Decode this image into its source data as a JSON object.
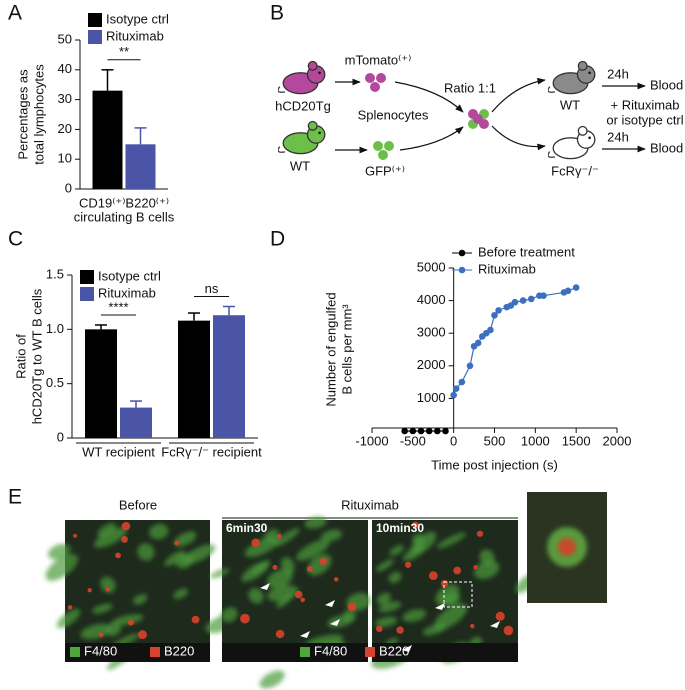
{
  "panel_labels": [
    "A",
    "B",
    "C",
    "D",
    "E"
  ],
  "chart_data": [
    {
      "type": "bar",
      "y_label": [
        "Percentages as",
        "total lymphocytes"
      ],
      "categories": [
        "CD19⁽⁺⁾B220⁽⁺⁾"
      ],
      "x_label": "circulating B cells",
      "series": [
        {
          "name": "Isotype ctrl",
          "color": "#000000",
          "values": [
            33
          ],
          "errors": [
            7
          ]
        },
        {
          "name": "Rituximab",
          "color": "#4a55a8",
          "values": [
            15
          ],
          "errors": [
            5.5
          ]
        }
      ],
      "significance": [
        "**"
      ],
      "ylim": [
        0,
        50
      ],
      "yticks": [
        0,
        10,
        20,
        30,
        40,
        50
      ]
    },
    {
      "type": "bar",
      "y_label": [
        "Ratio of",
        "hCD20Tg to WT B cells"
      ],
      "categories": [
        "WT recipient",
        "FcRγ⁻/⁻ recipient"
      ],
      "series": [
        {
          "name": "Isotype ctrl",
          "color": "#000000",
          "values": [
            1.0,
            1.08
          ],
          "errors": [
            0.04,
            0.07
          ]
        },
        {
          "name": "Rituximab",
          "color": "#4a55a8",
          "values": [
            0.28,
            1.13
          ],
          "errors": [
            0.06,
            0.08
          ]
        }
      ],
      "significance": [
        "****",
        "ns"
      ],
      "ylim": [
        0,
        1.5
      ],
      "yticks": [
        0,
        0.5,
        {
          "value": 1,
          "label": "1.0"
        },
        1.5
      ]
    },
    {
      "type": "line",
      "y_label": [
        "Number of engulfed",
        "B cells per mm³"
      ],
      "x_label": "Time post injection (s)",
      "series": [
        {
          "name": "Before treatment",
          "color": "#000000",
          "x": [
            -600,
            -500,
            -400,
            -300,
            -200,
            -100
          ],
          "values": [
            0,
            0,
            0,
            0,
            0,
            0
          ]
        },
        {
          "name": "Rituximab",
          "color": "#3b6fc0",
          "x": [
            0,
            30,
            100,
            200,
            250,
            300,
            350,
            400,
            450,
            500,
            550,
            650,
            700,
            750,
            850,
            950,
            1050,
            1100,
            1350,
            1400,
            1500
          ],
          "values": [
            1100,
            1300,
            1500,
            2000,
            2600,
            2700,
            2900,
            3000,
            3100,
            3550,
            3700,
            3800,
            3850,
            3950,
            4000,
            4050,
            4150,
            4150,
            4250,
            4300,
            4400
          ]
        }
      ],
      "xlim": [
        -1000,
        2000
      ],
      "xticks": [
        -1000,
        -500,
        0,
        500,
        1000,
        1500,
        2000
      ],
      "ylim": [
        0,
        5000
      ],
      "yticks": [
        1000,
        2000,
        3000,
        4000,
        5000
      ]
    }
  ],
  "diagram": {
    "donor_labels": [
      "hCD20Tg",
      "WT"
    ],
    "cell_labels": [
      "mTomato⁽⁺⁾",
      "GFP⁽⁺⁾"
    ],
    "splenocytes": "Splenocytes",
    "ratio": "Ratio 1:1",
    "recipient_labels": [
      "WT",
      "FcRγ⁻/⁻"
    ],
    "time_labels": [
      "24h",
      "24h"
    ],
    "outcome_labels": [
      "Blood",
      "Blood"
    ],
    "treatment": [
      "+ Rituximab",
      "or isotype ctrl"
    ]
  },
  "images": {
    "titles": [
      "Before",
      "Rituximab"
    ],
    "timepoints": [
      "6min30",
      "10min30"
    ],
    "legends": [
      [
        "F4/80",
        "B220"
      ],
      [
        "F4/80",
        "B220"
      ]
    ]
  }
}
